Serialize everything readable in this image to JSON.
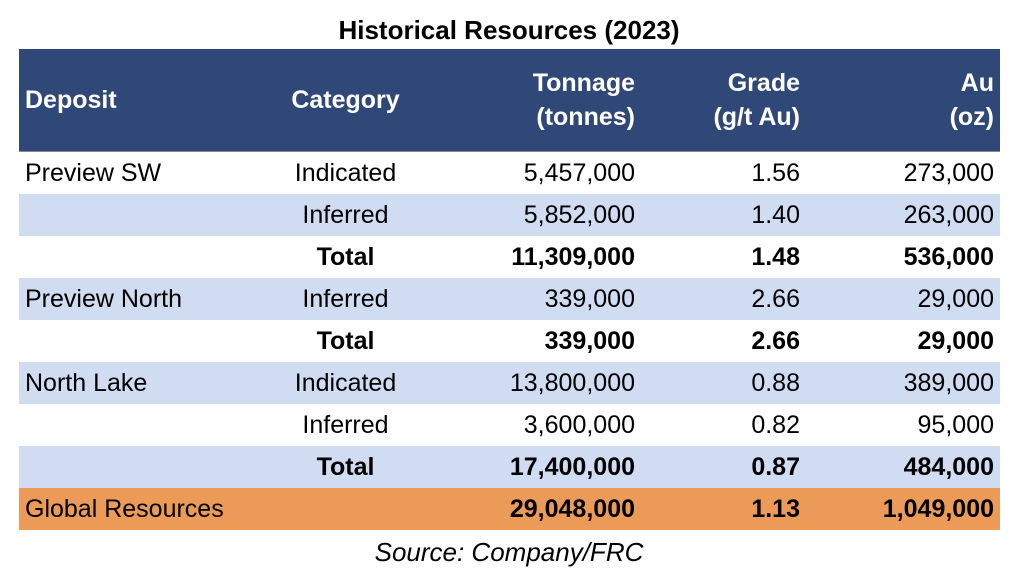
{
  "title": "Historical Resources (2023)",
  "colors": {
    "header_bg": "#2F4878",
    "band_blue": "#D0DCF1",
    "band_white": "#FFFFFF",
    "global_row": "#EB9B57",
    "header_text": "#FFFFFF"
  },
  "header": {
    "deposit": "Deposit",
    "category": "Category",
    "tonnage_line1": "Tonnage",
    "tonnage_line2": "(tonnes)",
    "grade_line1": "Grade",
    "grade_line2": "(g/t Au)",
    "au_line1": "Au",
    "au_line2": "(oz)"
  },
  "rows": [
    {
      "deposit": "Preview SW",
      "category": "Indicated",
      "tonnage": "5,457,000",
      "grade": "1.56",
      "au": "273,000"
    },
    {
      "deposit": "",
      "category": "Inferred",
      "tonnage": "5,852,000",
      "grade": "1.40",
      "au": "263,000"
    },
    {
      "deposit": "",
      "category": "Total",
      "tonnage": "11,309,000",
      "grade": "1.48",
      "au": "536,000"
    },
    {
      "deposit": "Preview North",
      "category": "Inferred",
      "tonnage": "339,000",
      "grade": "2.66",
      "au": "29,000"
    },
    {
      "deposit": "",
      "category": "Total",
      "tonnage": "339,000",
      "grade": "2.66",
      "au": "29,000"
    },
    {
      "deposit": "North Lake",
      "category": "Indicated",
      "tonnage": "13,800,000",
      "grade": "0.88",
      "au": "389,000"
    },
    {
      "deposit": "",
      "category": "Inferred",
      "tonnage": "3,600,000",
      "grade": "0.82",
      "au": "95,000"
    },
    {
      "deposit": "",
      "category": "Total",
      "tonnage": "17,400,000",
      "grade": "0.87",
      "au": "484,000"
    },
    {
      "deposit": "Global Resources",
      "category": "",
      "tonnage": "29,048,000",
      "grade": "1.13",
      "au": "1,049,000"
    }
  ],
  "source": "Source: Company/FRC"
}
